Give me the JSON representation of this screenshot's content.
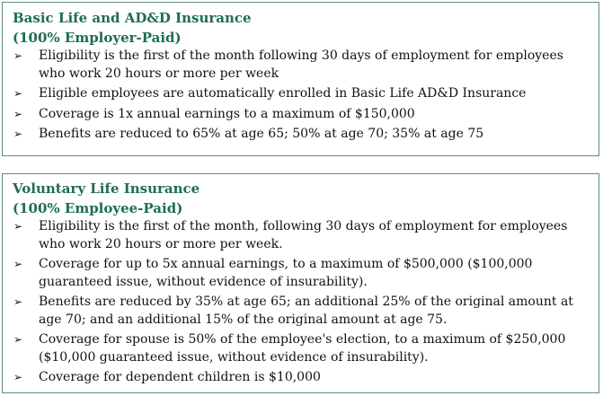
{
  "sections": [
    {
      "title": "Basic Life and AD&D Insurance",
      "subtitle": "(100% Employer-Paid)",
      "bullet_glyph": "➢",
      "items": [
        "Eligibility is the first of the month following 30 days of employment for employees who work 20 hours or more per week",
        "Eligible employees are automatically enrolled in Basic Life AD&D Insurance",
        "Coverage is 1x annual earnings to a maximum of $150,000",
        "Benefits are reduced to 65% at age 65; 50% at age 70; 35% at age 75"
      ]
    },
    {
      "title": "Voluntary Life Insurance",
      "subtitle": "(100% Employee-Paid)",
      "bullet_glyph": "➢",
      "items": [
        "Eligibility is the first of the month, following 30 days of employment for employees who work 20 hours or more per week.",
        "Coverage for up to 5x annual earnings, to a maximum of $500,000 ($100,000 guaranteed issue, without evidence of insurability).",
        "Benefits are reduced by 35% at age 65; an additional 25% of the original amount at age 70; and an additional 15% of the original amount at age 75.",
        "Coverage for spouse is 50% of the employee's election, to a maximum of $250,000 ($10,000 guaranteed issue, without evidence of insurability).",
        "Coverage for dependent children is $10,000"
      ]
    }
  ],
  "colors": {
    "heading": "#1d6f4b",
    "border": "#5b8f76",
    "text": "#111111"
  }
}
